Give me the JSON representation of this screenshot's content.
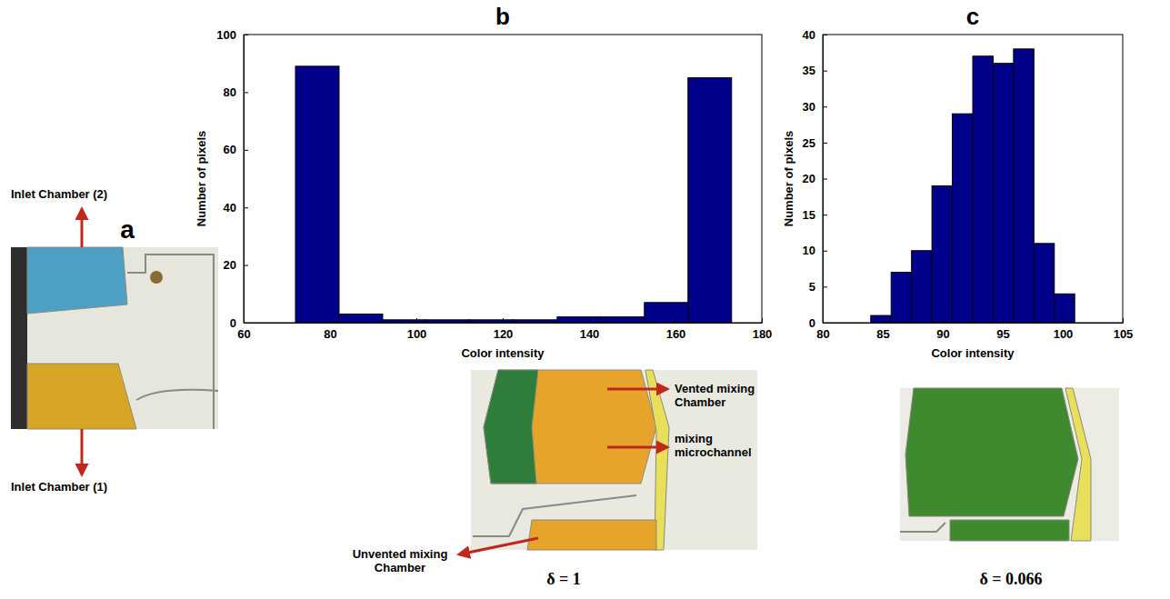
{
  "chart_data": [
    {
      "type": "histogram",
      "title": "b",
      "xlabel": "Color intensity",
      "ylabel": "Number of pixels",
      "bins": [
        72,
        82.1,
        92.2,
        102.3,
        112.4,
        122.5,
        132.6,
        142.7,
        152.8,
        162.9,
        173
      ],
      "values": [
        89,
        3,
        1,
        1,
        1,
        1,
        2,
        2,
        7,
        85
      ],
      "color": "#00008b",
      "xlim": [
        60,
        180
      ],
      "xticks": [
        60,
        80,
        100,
        120,
        140,
        160,
        180
      ],
      "ylim": [
        0,
        100
      ],
      "yticks": [
        0,
        20,
        40,
        60,
        80,
        100
      ],
      "annotations": [
        "Vented mixing Chamber",
        "mixing microchannel",
        "Unvented mixing Chamber"
      ],
      "caption": "δ = 1"
    },
    {
      "type": "histogram",
      "title": "c",
      "xlabel": "Color intensity",
      "ylabel": "Number of pixels",
      "bins": [
        84,
        85.7,
        87.4,
        89.1,
        90.8,
        92.5,
        94.2,
        95.9,
        97.6,
        99.3,
        101
      ],
      "values": [
        1,
        7,
        10,
        19,
        29,
        37,
        36,
        38,
        11,
        4
      ],
      "color": "#00008b",
      "xlim": [
        80,
        105
      ],
      "xticks": [
        80,
        85,
        90,
        95,
        100,
        105
      ],
      "ylim": [
        0,
        40
      ],
      "yticks": [
        0,
        5,
        10,
        15,
        20,
        25,
        30,
        35,
        40
      ],
      "caption": "δ = 0.066"
    }
  ],
  "panel_a": {
    "letter": "a",
    "top_label": "Inlet Chamber (2)",
    "bottom_label": "Inlet Chamber (1)"
  }
}
